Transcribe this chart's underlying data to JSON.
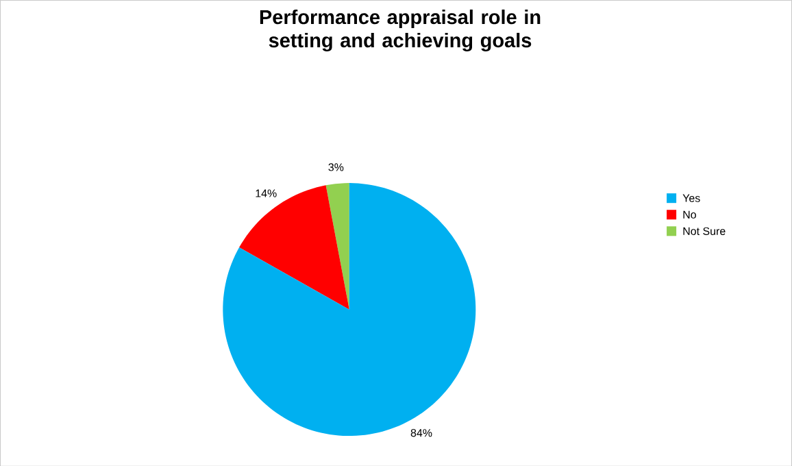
{
  "chart_data": {
    "type": "pie",
    "title": "Performance appraisal role in setting and achieving goals",
    "categories": [
      "Yes",
      "No",
      "Not Sure"
    ],
    "values": [
      84,
      14,
      3
    ],
    "colors": [
      "#00b0f0",
      "#ff0000",
      "#92d050"
    ],
    "value_labels": [
      "84%",
      "14%",
      "3%"
    ],
    "legend": "right"
  }
}
